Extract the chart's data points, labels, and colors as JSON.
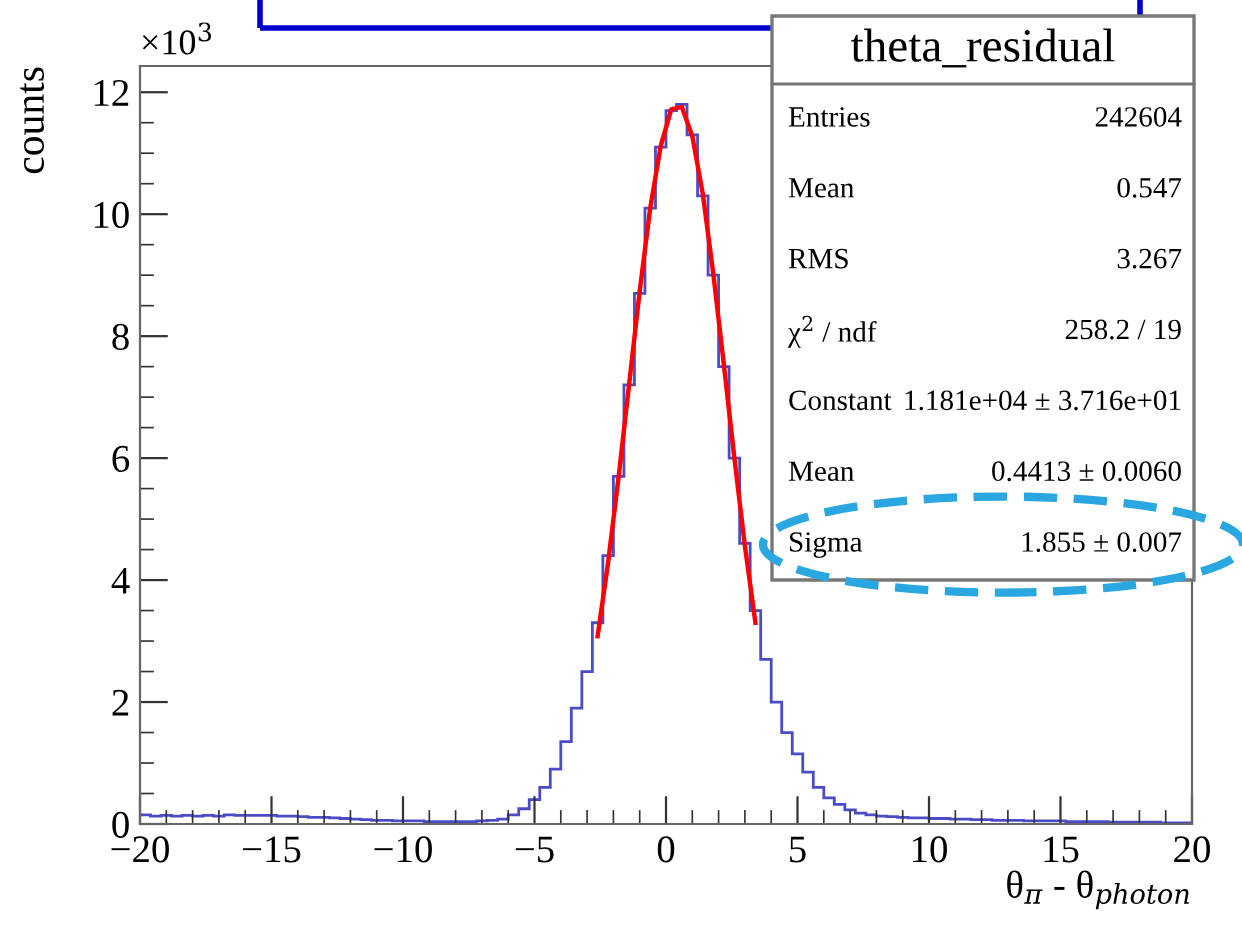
{
  "chart_data": {
    "type": "histogram",
    "title": "theta_residual",
    "xlabel": "θ$_{π}$ - θ$_{photon}$",
    "ylabel": "counts",
    "xlim": [
      -20,
      20
    ],
    "ylim": [
      0,
      12.43
    ],
    "xticks": [
      {
        "value": -20,
        "label": "−20"
      },
      {
        "value": -15,
        "label": "−15"
      },
      {
        "value": -10,
        "label": "−10"
      },
      {
        "value": -5,
        "label": "−5"
      },
      0,
      5,
      10,
      15,
      20
    ],
    "yticks": [
      0,
      2,
      4,
      6,
      8,
      10,
      12
    ],
    "grid": false,
    "annotations": [
      "×10$^{3}$",
      "Entries",
      "242604",
      "Mean",
      "0.547",
      "RMS",
      "3.267",
      "χ$^{2}$ / ndf",
      "258.2 / 19",
      "Constant",
      "1.181e+04 ± 3.716e+01",
      "Mean",
      "0.4413 ± 0.0060",
      "Sigma",
      "1.855 ± 0.007"
    ],
    "series": [
      {
        "color": "#4b4bc8",
        "bins": [
          -20,
          -19.6,
          -19.2,
          -18.8,
          -18.4,
          -18,
          -17.6,
          -17.2,
          -16.8,
          -16.4,
          -16,
          -15.6,
          -15.2,
          -14.8,
          -14.4,
          -14,
          -13.6,
          -13.2,
          -12.8,
          -12.4,
          -12,
          -11.6,
          -11.2,
          -10.8,
          -10.4,
          -10,
          -9.6,
          -9.2,
          -8.8,
          -8.4,
          -8,
          -7.6,
          -7.2,
          -6.8,
          -6.4,
          -6,
          -5.6,
          -5.2,
          -4.8,
          -4.4,
          -4,
          -3.6,
          -3.2,
          -2.8,
          -2.4,
          -2,
          -1.6,
          -1.2,
          -0.8,
          -0.4,
          0,
          0.4,
          0.8,
          1.2,
          1.6,
          2,
          2.4,
          2.8,
          3.2,
          3.6,
          4,
          4.4,
          4.8,
          5.2,
          5.6,
          6,
          6.4,
          6.8,
          7.2,
          7.6,
          8,
          8.4,
          8.8,
          9.2,
          9.6,
          10,
          10.4,
          10.8,
          11.2,
          11.6,
          12,
          12.4,
          12.8,
          13.2,
          13.6,
          14,
          14.4,
          14.8,
          15.2,
          15.6,
          16,
          16.4,
          16.8,
          17.2,
          17.6,
          18,
          18.4,
          18.8,
          19.2,
          19.6,
          20
        ],
        "values": [
          0.15,
          0.13,
          0.14,
          0.13,
          0.14,
          0.13,
          0.14,
          0.13,
          0.15,
          0.14,
          0.14,
          0.14,
          0.14,
          0.13,
          0.13,
          0.12,
          0.11,
          0.11,
          0.1,
          0.09,
          0.08,
          0.07,
          0.06,
          0.06,
          0.05,
          0.05,
          0.05,
          0.04,
          0.04,
          0.04,
          0.04,
          0.04,
          0.05,
          0.06,
          0.08,
          0.15,
          0.25,
          0.4,
          0.6,
          0.9,
          1.35,
          1.9,
          2.5,
          3.3,
          4.4,
          5.7,
          7.2,
          8.7,
          10.1,
          11.1,
          11.7,
          11.8,
          11.3,
          10.3,
          9.0,
          7.5,
          6.0,
          4.6,
          3.5,
          2.7,
          2.0,
          1.5,
          1.15,
          0.85,
          0.6,
          0.43,
          0.32,
          0.23,
          0.18,
          0.15,
          0.13,
          0.12,
          0.11,
          0.1,
          0.1,
          0.09,
          0.09,
          0.08,
          0.08,
          0.07,
          0.07,
          0.06,
          0.06,
          0.06,
          0.05,
          0.05,
          0.05,
          0.05,
          0.04,
          0.04,
          0.04,
          0.04,
          0.03,
          0.03,
          0.03,
          0.03,
          0.03,
          0.02,
          0.02,
          0.02
        ]
      },
      {
        "type": "line",
        "color": "#ff0000",
        "x": [
          -2.6,
          -2.2,
          -1.8,
          -1.4,
          -1.0,
          -0.6,
          -0.2,
          0.2,
          0.6,
          1.0,
          1.4,
          1.8,
          2.2,
          2.6,
          3.0,
          3.4
        ],
        "values": [
          3.08,
          4.29,
          5.7,
          7.22,
          8.74,
          10.1,
          11.12,
          11.72,
          11.76,
          11.28,
          10.33,
          9.02,
          7.53,
          6.0,
          4.56,
          3.3
        ]
      }
    ]
  }
}
